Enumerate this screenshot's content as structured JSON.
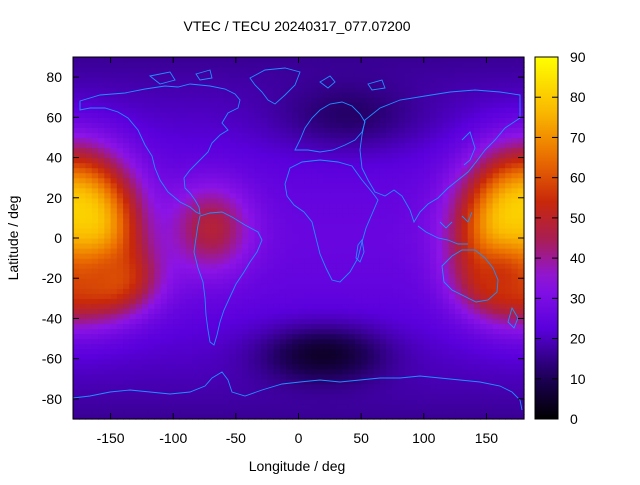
{
  "chart_data": {
    "type": "heatmap",
    "title": "VTEC / TECU 20240317_077.07200",
    "xlabel": "Longitude / deg",
    "ylabel": "Latitude / deg",
    "xlim": [
      -180,
      180
    ],
    "ylim": [
      -90,
      90
    ],
    "xticks": [
      -150,
      -100,
      -50,
      0,
      50,
      100,
      150
    ],
    "yticks": [
      -80,
      -60,
      -40,
      -20,
      0,
      20,
      40,
      60,
      80
    ],
    "colorbar": {
      "min": 0,
      "max": 90,
      "ticks": [
        0,
        10,
        20,
        30,
        40,
        50,
        60,
        70,
        80,
        90
      ],
      "palette": "black-blue-purple-red-orange-yellow"
    },
    "grid_resolution_deg": {
      "lon": 5,
      "lat": 2.5
    },
    "field_description": "Vertical total electron content in TECU; maxima near the equator at both longitudinal edges, minima at high latitudes",
    "features": [
      {
        "name": "equatorial maximum west",
        "lon": -175,
        "lat": 5,
        "value": 85,
        "sigma_lon": 28,
        "sigma_lat": 22
      },
      {
        "name": "equatorial maximum east",
        "lon": 175,
        "lat": 5,
        "value": 82,
        "sigma_lon": 30,
        "sigma_lat": 22
      },
      {
        "name": "southern crest west",
        "lon": -150,
        "lat": -20,
        "value": 60,
        "sigma_lon": 25,
        "sigma_lat": 12
      },
      {
        "name": "southern crest east",
        "lon": 160,
        "lat": -20,
        "value": 55,
        "sigma_lon": 22,
        "sigma_lat": 12
      },
      {
        "name": "South America arm",
        "lon": -70,
        "lat": 5,
        "value": 48,
        "sigma_lon": 22,
        "sigma_lat": 15
      },
      {
        "name": "southern Atlantic minimum",
        "lon": 20,
        "lat": -58,
        "value": 5,
        "sigma_lon": 35,
        "sigma_lat": 10
      },
      {
        "name": "northern minimum",
        "lon": 40,
        "lat": 62,
        "value": 12,
        "sigma_lon": 40,
        "sigma_lat": 12
      }
    ],
    "colors": {
      "coastline": "#1e90ff",
      "frame": "#000000"
    }
  }
}
